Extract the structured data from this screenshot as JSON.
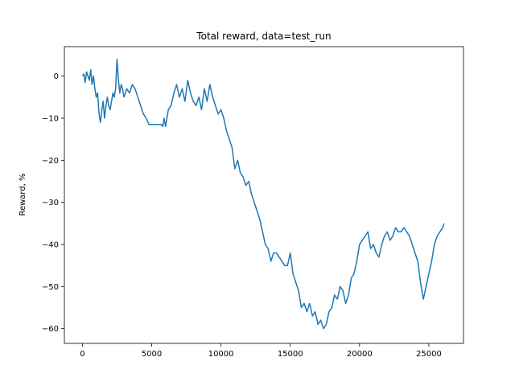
{
  "chart_data": {
    "type": "line",
    "title": "Total reward, data=test_run",
    "xlabel": "",
    "ylabel": "Reward, %",
    "xlim": [
      -1300,
      27500
    ],
    "ylim": [
      -63.5,
      7
    ],
    "xticks": [
      0,
      5000,
      10000,
      15000,
      20000,
      25000
    ],
    "yticks": [
      0,
      -10,
      -20,
      -30,
      -40,
      -50,
      -60
    ],
    "grid": false,
    "legend": "none",
    "series": [
      {
        "color": "#1f77b4",
        "x": [
          0,
          100,
          200,
          300,
          400,
          500,
          600,
          700,
          800,
          900,
          1000,
          1100,
          1200,
          1300,
          1400,
          1500,
          1600,
          1700,
          1800,
          1900,
          2000,
          2100,
          2200,
          2300,
          2400,
          2500,
          2600,
          2700,
          2800,
          2900,
          3000,
          3200,
          3400,
          3600,
          3800,
          4000,
          4200,
          4400,
          4600,
          4800,
          4850,
          5000,
          5200,
          5400,
          5500,
          5600,
          5700,
          5800,
          5900,
          6000,
          6200,
          6400,
          6600,
          6800,
          7000,
          7200,
          7400,
          7600,
          7800,
          8000,
          8200,
          8400,
          8600,
          8800,
          9000,
          9200,
          9400,
          9600,
          9800,
          10000,
          10200,
          10400,
          10600,
          10800,
          11000,
          11200,
          11400,
          11600,
          11800,
          12000,
          12200,
          12400,
          12600,
          12800,
          13000,
          13200,
          13400,
          13600,
          13800,
          14000,
          14200,
          14400,
          14600,
          14800,
          15000,
          15200,
          15400,
          15600,
          15800,
          16000,
          16200,
          16400,
          16600,
          16800,
          17000,
          17200,
          17400,
          17600,
          17800,
          18000,
          18200,
          18400,
          18600,
          18800,
          19000,
          19200,
          19400,
          19600,
          19800,
          20000,
          20200,
          20400,
          20600,
          20800,
          21000,
          21200,
          21400,
          21600,
          21800,
          22000,
          22200,
          22400,
          22600,
          22800,
          23000,
          23200,
          23400,
          23600,
          23800,
          24000,
          24200,
          24400,
          24600,
          24800,
          25000,
          25200,
          25400,
          25600,
          25800,
          26000,
          26100
        ],
        "y": [
          0,
          0.5,
          -1.5,
          1,
          0,
          -1,
          1.5,
          -2,
          0,
          -3,
          -5,
          -4,
          -9,
          -11,
          -8,
          -6,
          -10,
          -7,
          -5,
          -7,
          -8,
          -6,
          -4,
          -5,
          -3,
          4,
          -1,
          -4,
          -2,
          -3,
          -5,
          -3,
          -4,
          -2,
          -3,
          -5,
          -7,
          -9,
          -10,
          -11.5,
          -11.5,
          -11.5,
          -11.5,
          -11.5,
          -11.5,
          -11.5,
          -11.5,
          -12,
          -10,
          -12,
          -8,
          -7,
          -4,
          -2,
          -5,
          -3,
          -6,
          -1,
          -4,
          -6,
          -7,
          -5,
          -8,
          -3,
          -6,
          -2,
          -5,
          -7,
          -9,
          -8,
          -10,
          -13,
          -15,
          -17,
          -22,
          -20,
          -23,
          -24,
          -26,
          -25,
          -28,
          -30,
          -32,
          -34,
          -37,
          -40,
          -41,
          -44,
          -42,
          -42,
          -43,
          -44,
          -45,
          -45,
          -42,
          -47,
          -49,
          -51,
          -55,
          -54,
          -56,
          -54,
          -57,
          -56,
          -59,
          -58,
          -60,
          -59,
          -56,
          -55,
          -52,
          -53,
          -50,
          -51,
          -54,
          -52,
          -48,
          -47,
          -44,
          -40,
          -39,
          -38,
          -37,
          -41,
          -40,
          -42,
          -43,
          -40,
          -38,
          -37,
          -39,
          -38,
          -36,
          -37,
          -37,
          -36,
          -37,
          -38,
          -40,
          -42,
          -44,
          -49,
          -53,
          -50,
          -47,
          -44,
          -40,
          -38,
          -37,
          -36,
          -35
        ]
      }
    ]
  }
}
